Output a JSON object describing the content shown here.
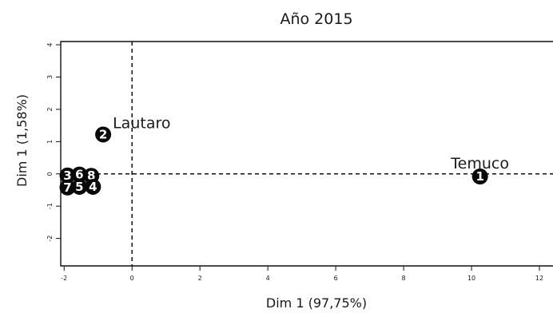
{
  "chart_data": {
    "type": "scatter",
    "title": "Año 2015",
    "xlabel": "Dim 1 (97,75%)",
    "ylabel": "Dim 1 (1,58%)",
    "xlim": [
      -2.1,
      12.4
    ],
    "ylim": [
      -2.85,
      4.1
    ],
    "xticks": [
      -2,
      0,
      2,
      4,
      6,
      8,
      10,
      12
    ],
    "yticks": [
      -2,
      -1,
      0,
      1,
      2,
      3,
      4
    ],
    "reference_lines": {
      "x": 0,
      "y": 0,
      "style": "dashed"
    },
    "points": [
      {
        "label": "1",
        "x": 10.25,
        "y": -0.08,
        "annotation": "Temuco"
      },
      {
        "label": "2",
        "x": -0.85,
        "y": 1.22,
        "annotation": "Lautaro"
      },
      {
        "label": "3",
        "x": -1.9,
        "y": -0.05
      },
      {
        "label": "6",
        "x": -1.55,
        "y": -0.02
      },
      {
        "label": "8",
        "x": -1.2,
        "y": -0.06
      },
      {
        "label": "7",
        "x": -1.9,
        "y": -0.42
      },
      {
        "label": "5",
        "x": -1.55,
        "y": -0.4
      },
      {
        "label": "4",
        "x": -1.15,
        "y": -0.4
      }
    ]
  }
}
